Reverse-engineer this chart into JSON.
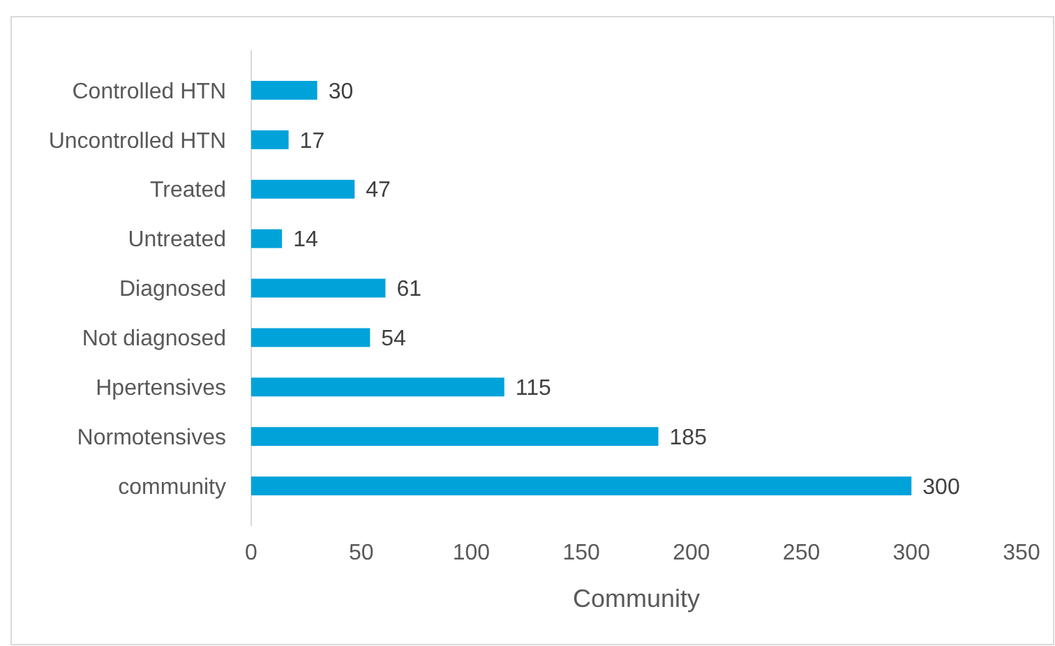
{
  "chart_data": {
    "type": "bar",
    "orientation": "horizontal",
    "xlabel": "Community",
    "categories": [
      "Controlled HTN",
      "Uncontrolled HTN",
      "Treated",
      "Untreated",
      "Diagnosed",
      "Not diagnosed",
      "Hpertensives",
      "Normotensives",
      "community"
    ],
    "values": [
      30,
      17,
      47,
      14,
      61,
      54,
      115,
      185,
      300
    ],
    "color": "#00a2da",
    "xlim": [
      0,
      350
    ],
    "xticks": [
      0,
      50,
      100,
      150,
      200,
      250,
      300,
      350
    ],
    "grid": false,
    "data_labels": true
  }
}
